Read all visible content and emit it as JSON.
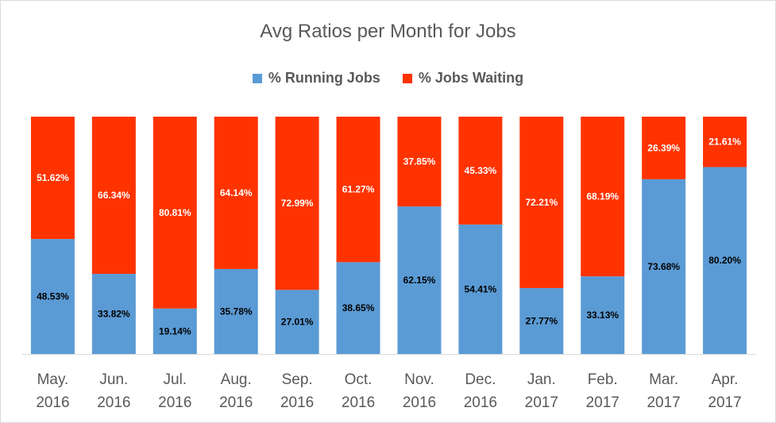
{
  "chart_data": {
    "type": "bar",
    "stacked": true,
    "percent_stacked": true,
    "title": "Avg Ratios per Month for Jobs",
    "xlabel": "",
    "ylabel": "",
    "ylim": [
      0,
      100
    ],
    "grid": false,
    "legend_position": "top",
    "categories": [
      [
        "May.",
        "2016"
      ],
      [
        "Jun.",
        "2016"
      ],
      [
        "Jul.",
        "2016"
      ],
      [
        "Aug.",
        "2016"
      ],
      [
        "Sep.",
        "2016"
      ],
      [
        "Oct.",
        "2016"
      ],
      [
        "Nov.",
        "2016"
      ],
      [
        "Dec.",
        "2016"
      ],
      [
        "Jan.",
        "2017"
      ],
      [
        "Feb.",
        "2017"
      ],
      [
        "Mar.",
        "2017"
      ],
      [
        "Apr.",
        "2017"
      ]
    ],
    "series": [
      {
        "name": "% Running Jobs",
        "color": "#5b9bd5",
        "label_color": "#000000",
        "values": [
          48.53,
          33.82,
          19.14,
          35.78,
          27.01,
          38.65,
          62.15,
          54.41,
          27.77,
          33.13,
          73.68,
          80.2
        ],
        "labels": [
          "48.53%",
          "33.82%",
          "19.14%",
          "35.78%",
          "27.01%",
          "38.65%",
          "62.15%",
          "54.41%",
          "27.77%",
          "33.13%",
          "73.68%",
          "80.20%"
        ]
      },
      {
        "name": "% Jobs Waiting",
        "color": "#ff3300",
        "label_color": "#ffffff",
        "values": [
          51.62,
          66.34,
          80.81,
          64.14,
          72.99,
          61.27,
          37.85,
          45.33,
          72.21,
          68.19,
          26.39,
          21.61
        ],
        "labels": [
          "51.62%",
          "66.34%",
          "80.81%",
          "64.14%",
          "72.99%",
          "61.27%",
          "37.85%",
          "45.33%",
          "72.21%",
          "68.19%",
          "26.39%",
          "21.61%"
        ]
      }
    ]
  }
}
